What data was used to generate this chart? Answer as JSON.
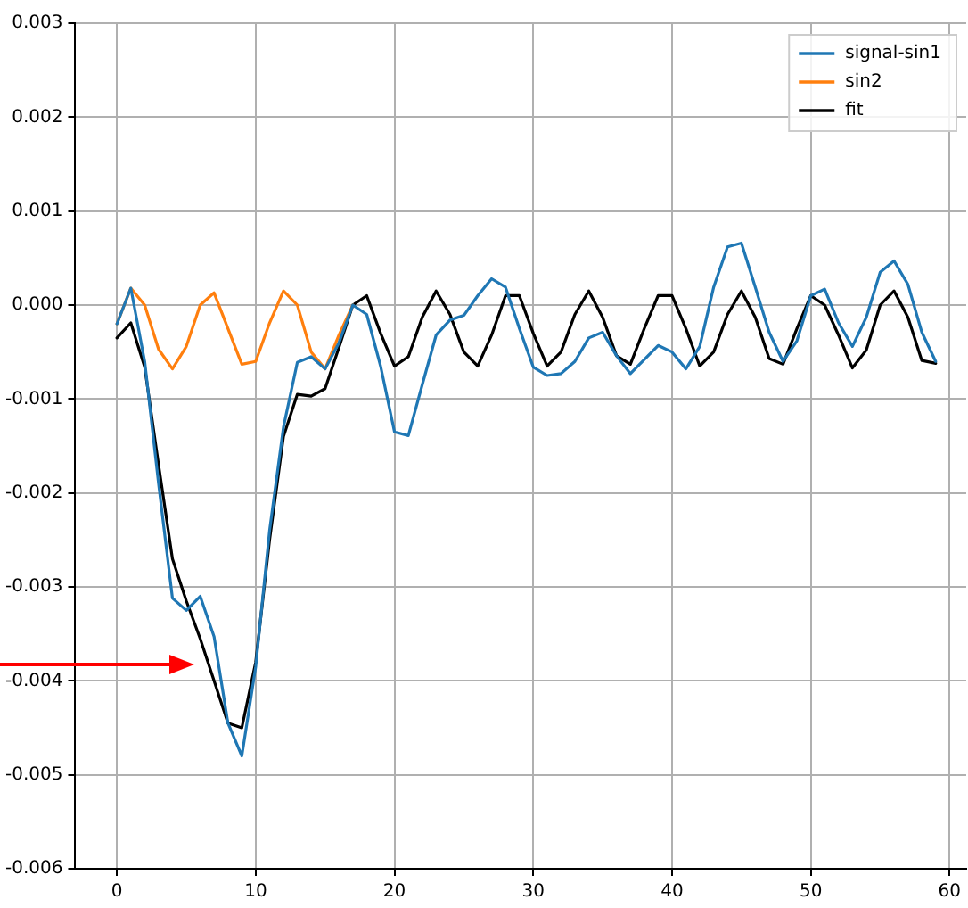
{
  "chart_data": {
    "type": "line",
    "xlim": [
      -3,
      61.2
    ],
    "xticks": [
      0,
      10,
      20,
      30,
      40,
      50,
      60
    ],
    "ylim": [
      -0.006,
      0.003
    ],
    "yticks": [
      {
        "value": -0.006,
        "label": "-0.006"
      },
      {
        "value": -0.005,
        "label": "-0.005"
      },
      {
        "value": -0.004,
        "label": "-0.004"
      },
      {
        "value": -0.003,
        "label": "-0.003"
      },
      {
        "value": -0.002,
        "label": "-0.002"
      },
      {
        "value": -0.001,
        "label": "-0.001"
      },
      {
        "value": 0,
        "label": "0.000"
      },
      {
        "value": 0.001,
        "label": "0.001"
      },
      {
        "value": 0.002,
        "label": "0.002"
      },
      {
        "value": 0.003,
        "label": "0.003"
      }
    ],
    "grid": true,
    "legend": "top right",
    "marker": "none",
    "line_style": "solid",
    "x": [
      0,
      1,
      2,
      3,
      4,
      5,
      6,
      7,
      8,
      9,
      10,
      11,
      12,
      13,
      14,
      15,
      16,
      17,
      18,
      19,
      20,
      21,
      22,
      23,
      24,
      25,
      26,
      27,
      28,
      29,
      30,
      31,
      32,
      33,
      34,
      35,
      36,
      37,
      38,
      39,
      40,
      41,
      42,
      43,
      44,
      45,
      46,
      47,
      48,
      49,
      50,
      51,
      52,
      53,
      54,
      55,
      56,
      57,
      58,
      59
    ],
    "series": [
      {
        "name": "signal-sin1",
        "color": "#1f77b4",
        "values": [
          -0.0002,
          0.00018,
          -0.0006,
          -0.0019,
          -0.00312,
          -0.00325,
          -0.0031,
          -0.00353,
          -0.00445,
          -0.0048,
          -0.00385,
          -0.0024,
          -0.0013,
          -0.00061,
          -0.00055,
          -0.00068,
          -0.0004,
          0,
          -0.0001,
          -0.00065,
          -0.00135,
          -0.00139,
          -0.00085,
          -0.00032,
          -0.00016,
          -0.00011,
          0.0001,
          0.00028,
          0.00019,
          -0.00025,
          -0.00066,
          -0.00075,
          -0.00073,
          -0.0006,
          -0.00035,
          -0.00029,
          -0.00054,
          -0.00073,
          -0.00058,
          -0.00043,
          -0.0005,
          -0.00068,
          -0.00044,
          0.00019,
          0.00062,
          0.00066,
          0.00019,
          -0.00029,
          -0.0006,
          -0.00038,
          0.0001,
          0.00017,
          -0.00019,
          -0.00044,
          -0.00013,
          0.00035,
          0.00047,
          0.00022,
          -0.00029,
          -0.0006
        ]
      },
      {
        "name": "sin2",
        "color": "#ff7f0e",
        "x": [
          0,
          1,
          2,
          3,
          4,
          5,
          6,
          7,
          8,
          9,
          10,
          11,
          12,
          13,
          14,
          15,
          16,
          17
        ],
        "values": [
          -0.0002,
          0.00018,
          0,
          -0.00047,
          -0.00068,
          -0.00044,
          0,
          0.00013,
          -0.00025,
          -0.00063,
          -0.0006,
          -0.00019,
          0.00015,
          0,
          -0.0005,
          -0.00068,
          -0.00032,
          0
        ]
      },
      {
        "name": "fit",
        "color": "#000000",
        "values": [
          -0.00035,
          -0.00019,
          -0.00066,
          -0.0017,
          -0.0027,
          -0.00315,
          -0.00355,
          -0.004,
          -0.00445,
          -0.0045,
          -0.0038,
          -0.0025,
          -0.0014,
          -0.00095,
          -0.00097,
          -0.00089,
          -0.00045,
          0,
          0.0001,
          -0.0003,
          -0.00065,
          -0.00055,
          -0.00013,
          0.00015,
          -0.0001,
          -0.0005,
          -0.00065,
          -0.00032,
          0.0001,
          0.0001,
          -0.0003,
          -0.00065,
          -0.0005,
          -0.0001,
          0.00015,
          -0.00013,
          -0.00054,
          -0.00063,
          -0.00025,
          0.0001,
          0.0001,
          -0.00025,
          -0.00065,
          -0.0005,
          -0.0001,
          0.00015,
          -0.00013,
          -0.00057,
          -0.00063,
          -0.00025,
          0.0001,
          0,
          -0.00032,
          -0.00067,
          -0.00048,
          0,
          0.00015,
          -0.00013,
          -0.00059,
          -0.00062
        ]
      }
    ]
  }
}
